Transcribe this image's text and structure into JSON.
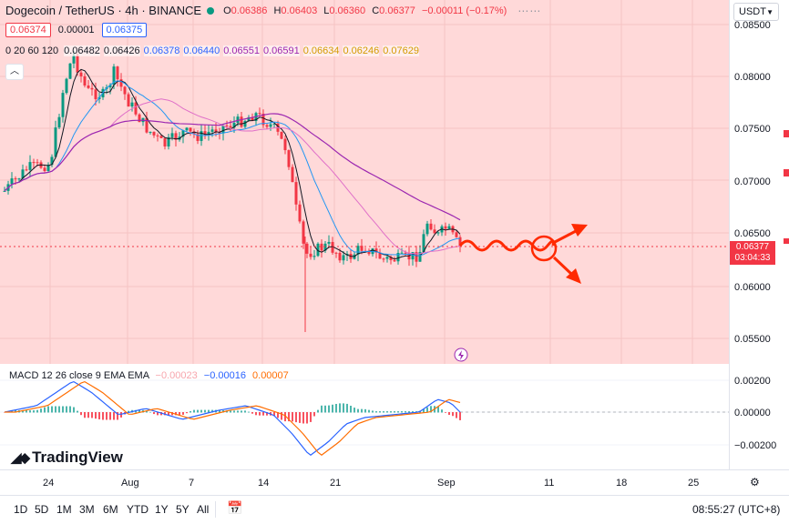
{
  "header": {
    "symbol": "Dogecoin / TetherUS · 4h · BINANCE",
    "ohlc": [
      {
        "k": "O",
        "v": "0.06386"
      },
      {
        "k": "H",
        "v": "0.06403"
      },
      {
        "k": "L",
        "v": "0.06360"
      },
      {
        "k": "C",
        "v": "0.06377"
      }
    ],
    "change": "−0.00011 (−0.17%)",
    "sell_price": "0.06374",
    "spread": "0.00001",
    "buy_price": "0.06375",
    "ma_label": "0 20 60 120",
    "ma_values": [
      {
        "v": "0.06482",
        "color": "#131722"
      },
      {
        "v": "0.06426",
        "color": "#131722"
      },
      {
        "v": "0.06378",
        "color": "#2962ff"
      },
      {
        "v": "0.06440",
        "color": "#2962ff"
      },
      {
        "v": "0.06551",
        "color": "#9c27b0"
      },
      {
        "v": "0.06591",
        "color": "#9c27b0"
      },
      {
        "v": "0.06634",
        "color": "#ff9800"
      },
      {
        "v": "0.06246",
        "color": "#ff9800"
      },
      {
        "v": "0.07629",
        "color": "#ff9800"
      }
    ]
  },
  "currency": "USDT",
  "price_axis": [
    "0.08500",
    "0.08000",
    "0.07500",
    "0.07000",
    "0.06500",
    "0.06000",
    "0.05500"
  ],
  "current_price": {
    "price": "0.06377",
    "countdown": "03:04:33"
  },
  "macd": {
    "label": "MACD 12 26 close 9 EMA EMA",
    "hist": "−0.00023",
    "macd_line": "−0.00016",
    "signal": "0.00007",
    "axis": [
      "0.00200",
      "0.00000",
      "−0.00200"
    ]
  },
  "time_axis": [
    {
      "label": "24"
    },
    {
      "label": "Aug"
    },
    {
      "label": "7"
    },
    {
      "label": "14"
    },
    {
      "label": "21"
    },
    {
      "label": "Sep"
    },
    {
      "label": "11"
    },
    {
      "label": "18"
    },
    {
      "label": "25"
    }
  ],
  "ranges": [
    "1D",
    "5D",
    "1M",
    "3M",
    "6M",
    "YTD",
    "1Y",
    "5Y",
    "All"
  ],
  "clock": "08:55:27 (UTC+8)",
  "logo": "TradingView",
  "colors": {
    "up": "#089981",
    "down": "#f23645",
    "bg": "#ffd9d9",
    "arrow": "#ff2a00"
  }
}
